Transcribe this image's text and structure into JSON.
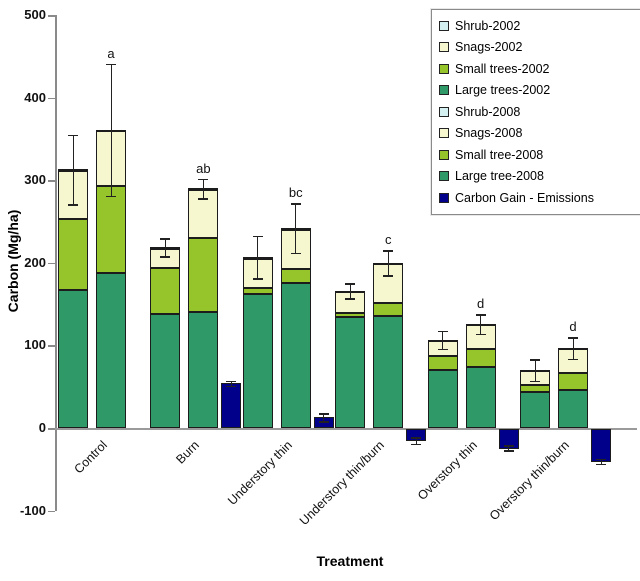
{
  "chart_data": {
    "type": "bar",
    "variant": "stacked-grouped-with-gain-bars",
    "title": "",
    "xlabel": "Treatment",
    "ylabel": "Carbon (Mg/ha)",
    "ylim": [
      -100,
      500
    ],
    "yticks": [
      500,
      400,
      300,
      200,
      100,
      0,
      -100
    ],
    "grid": "off",
    "legend_position": "top-right",
    "stack_order_bottom_to_top": [
      "large",
      "small",
      "snags",
      "shrub"
    ],
    "colors": {
      "shrub": "#D5F0F0",
      "snags": "#F7F7CF",
      "small": "#95C52A",
      "large": "#2F9A68",
      "gain": "#00008B",
      "axis": "#8a8a8a",
      "error_bar": "#222222"
    },
    "legend": [
      {
        "label": "Shrub-2002",
        "color": "#D5F0F0",
        "hatch": false
      },
      {
        "label": "Snags-2002",
        "color": "#F7F7CF",
        "hatch": false
      },
      {
        "label": "Small trees-2002",
        "color": "#95C52A",
        "hatch": false
      },
      {
        "label": "Large trees-2002",
        "color": "#2F9A68",
        "hatch": false
      },
      {
        "label": "Shrub-2008",
        "color": "#D5F0F0",
        "hatch": true
      },
      {
        "label": "Snags-2008",
        "color": "#F7F7CF",
        "hatch": true
      },
      {
        "label": "Small tree-2008",
        "color": "#95C52A",
        "hatch": true
      },
      {
        "label": "Large tree-2008",
        "color": "#2F9A68",
        "hatch": true
      },
      {
        "label": "Carbon Gain - Emissions",
        "color": "#00008B",
        "hatch": false
      }
    ],
    "groups": [
      {
        "label": "Control",
        "letter": "a",
        "bar2002": {
          "large": 167,
          "small": 86,
          "snags": 58,
          "shrub": 2,
          "total": 313,
          "err": 42
        },
        "bar2008": {
          "large": 188,
          "small": 105,
          "snags": 66,
          "shrub": 2,
          "total": 361,
          "err": 80
        },
        "gain": null
      },
      {
        "label": "Burn",
        "letter": "ab",
        "bar2002": {
          "large": 138,
          "small": 56,
          "snags": 23,
          "shrub": 2,
          "total": 219,
          "err": 11
        },
        "bar2008": {
          "large": 140,
          "small": 90,
          "snags": 58,
          "shrub": 2,
          "total": 290,
          "err": 12
        },
        "gain": {
          "value": 54,
          "err": 3
        }
      },
      {
        "label": "Understory thin",
        "letter": "bc",
        "bar2002": {
          "large": 162,
          "small": 8,
          "snags": 35,
          "shrub": 2,
          "total": 207,
          "err": 26
        },
        "bar2008": {
          "large": 175,
          "small": 17,
          "snags": 48,
          "shrub": 2,
          "total": 242,
          "err": 30
        },
        "gain": {
          "value": 13,
          "err": 5
        }
      },
      {
        "label": "Understory thin/burn",
        "letter": "c",
        "bar2002": {
          "large": 134,
          "small": 5,
          "snags": 26,
          "shrub": 1,
          "total": 166,
          "err": 9
        },
        "bar2008": {
          "large": 136,
          "small": 15,
          "snags": 48,
          "shrub": 1,
          "total": 200,
          "err": 15
        },
        "gain": {
          "value": -15,
          "err": 4
        }
      },
      {
        "label": "Overstory thin",
        "letter": "d",
        "bar2002": {
          "large": 70,
          "small": 17,
          "snags": 19,
          "shrub": 1,
          "total": 107,
          "err": 11
        },
        "bar2008": {
          "large": 74,
          "small": 22,
          "snags": 29,
          "shrub": 1,
          "total": 126,
          "err": 12
        },
        "gain": {
          "value": -24,
          "err": 3
        }
      },
      {
        "label": "Overstory thin/burn",
        "letter": "d",
        "bar2002": {
          "large": 44,
          "small": 8,
          "snags": 17,
          "shrub": 1,
          "total": 70,
          "err": 13
        },
        "bar2008": {
          "large": 46,
          "small": 20,
          "snags": 30,
          "shrub": 1,
          "total": 97,
          "err": 13
        },
        "gain": {
          "value": -40,
          "err": 3
        }
      }
    ]
  }
}
